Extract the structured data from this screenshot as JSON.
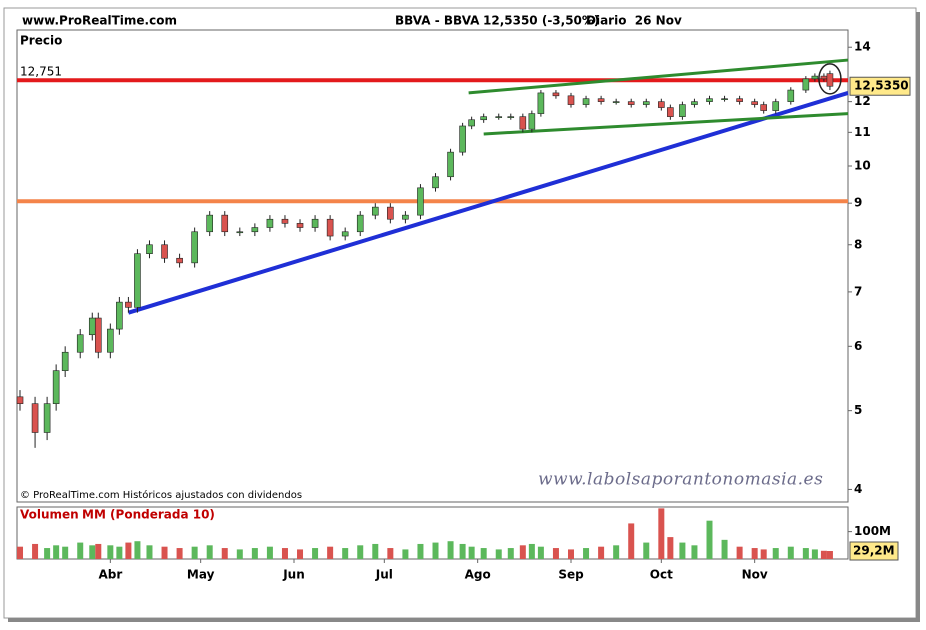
{
  "chart_data": {
    "type": "candlestick",
    "site": "www.ProRealTime.com",
    "instrument": "BBVA - BBVA",
    "quote": "12,5350 (-3,50%)",
    "period": "Diario  26 Nov",
    "ylabel": "Precio",
    "copyright": "© ProRealTime.com Históricos ajustados con dividendos",
    "watermark": "www.labolsaporantonomasia.es",
    "log_y": true,
    "xlim": [
      60,
      336
    ],
    "xticks": [
      {
        "value": 91,
        "label": "Abr"
      },
      {
        "value": 121,
        "label": "May"
      },
      {
        "value": 152,
        "label": "Jun"
      },
      {
        "value": 182,
        "label": "Jul"
      },
      {
        "value": 213,
        "label": "Ago"
      },
      {
        "value": 244,
        "label": "Sep"
      },
      {
        "value": 274,
        "label": "Oct"
      },
      {
        "value": 305,
        "label": "Nov"
      }
    ],
    "ylim": [
      3.86,
      14.7
    ],
    "yticks": [
      4,
      5,
      6,
      7,
      8,
      9,
      10,
      11,
      12,
      14
    ],
    "up_color": "#5cb85c",
    "down_color": "#d9534f",
    "x": [
      61,
      66,
      70,
      73,
      76,
      81,
      85,
      87,
      91,
      94,
      97,
      100,
      104,
      109,
      114,
      119,
      124,
      129,
      134,
      139,
      144,
      149,
      154,
      159,
      164,
      169,
      174,
      179,
      184,
      189,
      194,
      199,
      204,
      208,
      211,
      215,
      220,
      224,
      228,
      231,
      234,
      239,
      244,
      249,
      254,
      259,
      264,
      269,
      274,
      277,
      281,
      285,
      290,
      295,
      300,
      305,
      308,
      312,
      317,
      322,
      325,
      328,
      330
    ],
    "open": [
      5.2,
      5.1,
      4.7,
      5.1,
      5.6,
      5.9,
      6.2,
      6.5,
      5.9,
      6.3,
      6.8,
      6.7,
      7.8,
      8.0,
      7.7,
      7.6,
      8.3,
      8.7,
      8.3,
      8.3,
      8.4,
      8.6,
      8.5,
      8.4,
      8.6,
      8.2,
      8.3,
      8.7,
      8.9,
      8.6,
      8.7,
      9.4,
      9.7,
      10.4,
      11.2,
      11.4,
      11.5,
      11.5,
      11.5,
      11.1,
      11.6,
      12.3,
      12.2,
      11.9,
      12.1,
      12.0,
      12.0,
      11.9,
      12.0,
      11.8,
      11.5,
      11.9,
      12.0,
      12.1,
      12.1,
      12.0,
      11.9,
      11.7,
      12.0,
      12.4,
      12.8,
      12.9,
      12.99
    ],
    "high": [
      5.3,
      5.2,
      5.2,
      5.7,
      6.0,
      6.3,
      6.6,
      6.6,
      6.4,
      6.9,
      6.9,
      7.9,
      8.1,
      8.1,
      7.8,
      8.4,
      8.8,
      8.8,
      8.4,
      8.5,
      8.7,
      8.7,
      8.6,
      8.7,
      8.7,
      8.4,
      8.8,
      9.0,
      9.0,
      8.8,
      9.5,
      9.8,
      10.5,
      11.3,
      11.5,
      11.6,
      11.6,
      11.6,
      11.6,
      11.7,
      12.4,
      12.4,
      12.3,
      12.2,
      12.2,
      12.1,
      12.1,
      12.1,
      12.1,
      11.9,
      12.0,
      12.1,
      12.2,
      12.2,
      12.2,
      12.1,
      12.0,
      12.1,
      12.5,
      12.9,
      13.0,
      13.0,
      13.1
    ],
    "low": [
      5.0,
      4.5,
      4.6,
      5.0,
      5.5,
      5.8,
      6.1,
      5.8,
      5.8,
      6.2,
      6.6,
      6.6,
      7.7,
      7.6,
      7.5,
      7.5,
      8.2,
      8.2,
      8.2,
      8.2,
      8.3,
      8.4,
      8.3,
      8.3,
      8.1,
      8.1,
      8.2,
      8.6,
      8.5,
      8.5,
      8.6,
      9.3,
      9.6,
      10.3,
      11.1,
      11.3,
      11.4,
      11.4,
      11.0,
      11.0,
      11.5,
      12.1,
      11.8,
      11.8,
      11.9,
      11.9,
      11.8,
      11.8,
      11.7,
      11.4,
      11.4,
      11.8,
      11.9,
      12.0,
      11.9,
      11.8,
      11.6,
      11.6,
      11.9,
      12.3,
      12.7,
      12.7,
      12.4
    ],
    "close": [
      5.1,
      4.7,
      5.1,
      5.6,
      5.9,
      6.2,
      6.5,
      5.9,
      6.3,
      6.8,
      6.7,
      7.8,
      8.0,
      7.7,
      7.6,
      8.3,
      8.7,
      8.3,
      8.3,
      8.4,
      8.6,
      8.5,
      8.4,
      8.6,
      8.2,
      8.3,
      8.7,
      8.9,
      8.6,
      8.7,
      9.4,
      9.7,
      10.4,
      11.2,
      11.4,
      11.5,
      11.5,
      11.5,
      11.1,
      11.6,
      12.3,
      12.2,
      11.9,
      12.1,
      12.0,
      12.0,
      11.9,
      12.0,
      11.8,
      11.5,
      11.9,
      12.0,
      12.1,
      12.1,
      12.0,
      11.9,
      11.7,
      12.0,
      12.4,
      12.8,
      12.9,
      12.8,
      12.535
    ],
    "last_price": {
      "value": 12.535,
      "label": "12,5350"
    },
    "lines": [
      {
        "color": "#e31a1c",
        "label": "12,751",
        "x": [
          60,
          336
        ],
        "y": [
          12.751,
          12.751
        ]
      },
      {
        "color": "#f4844a",
        "x": [
          60,
          336
        ],
        "y": [
          9.05,
          9.05
        ]
      },
      {
        "color": "#1f2fd6",
        "x": [
          97,
          336
        ],
        "y": [
          6.6,
          12.3
        ]
      },
      {
        "color": "#2e8b2e",
        "x": [
          210,
          336
        ],
        "y": [
          12.3,
          13.5
        ]
      },
      {
        "color": "#2e8b2e",
        "x": [
          215,
          336
        ],
        "y": [
          10.95,
          11.6
        ]
      }
    ],
    "volume": {
      "title": "Volumen",
      "ma_label": "MM (Ponderada 10)",
      "ylim": [
        0,
        190
      ],
      "yticks": [
        {
          "value": 100,
          "label": "100M"
        }
      ],
      "values": [
        45,
        55,
        40,
        50,
        45,
        60,
        50,
        55,
        50,
        45,
        60,
        65,
        50,
        45,
        40,
        45,
        50,
        40,
        35,
        40,
        45,
        40,
        35,
        40,
        45,
        40,
        50,
        55,
        40,
        35,
        55,
        60,
        65,
        55,
        45,
        40,
        35,
        40,
        50,
        55,
        45,
        40,
        35,
        40,
        45,
        50,
        130,
        60,
        185,
        80,
        60,
        50,
        140,
        70,
        45,
        40,
        35,
        40,
        45,
        40,
        35,
        30,
        29.2
      ],
      "last": {
        "value": 29.2,
        "label": "29,2M"
      }
    }
  }
}
